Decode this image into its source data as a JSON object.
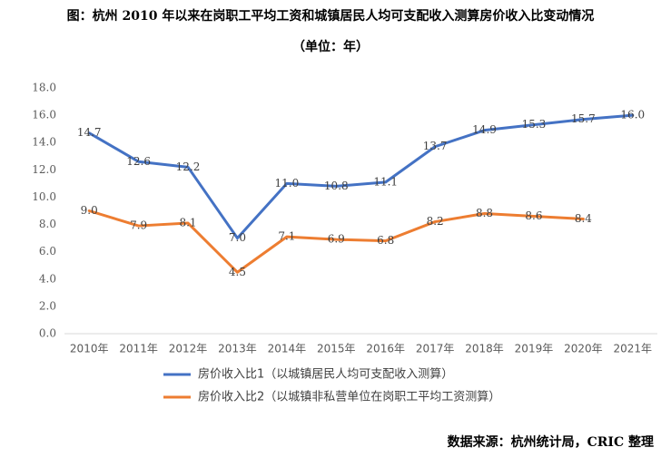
{
  "chart_data": {
    "type": "line",
    "title": "图：杭州 2010 年以来在岗职工平均工资和城镇居民人均可支配收入测算房价收入比变动情况",
    "subtitle": "（单位：年）",
    "source": "数据来源：杭州统计局，CRIC 整理",
    "categories": [
      "2010年",
      "2011年",
      "2012年",
      "2013年",
      "2014年",
      "2015年",
      "2016年",
      "2017年",
      "2018年",
      "2019年",
      "2020年",
      "2021年"
    ],
    "series": [
      {
        "name": "房价收入比1（以城镇居民人均可支配收入测算）",
        "color": "#4472c4",
        "values": [
          14.7,
          12.6,
          12.2,
          7.0,
          11.0,
          10.8,
          11.1,
          13.7,
          14.9,
          15.3,
          15.7,
          16.0
        ],
        "value_labels": [
          "14.7",
          "12.6",
          "12.2",
          "7.0",
          "11.0",
          "10.8",
          "11.1",
          "13.7",
          "14.9",
          "15.3",
          "15.7",
          "16.0"
        ]
      },
      {
        "name": "房价收入比2（以城镇非私营单位在岗职工平均工资测算）",
        "color": "#ed7d31",
        "values": [
          9.0,
          7.9,
          8.1,
          4.5,
          7.1,
          6.9,
          6.8,
          8.2,
          8.8,
          8.6,
          8.4,
          null
        ],
        "value_labels": [
          "9.0",
          "7.9",
          "8.1",
          "4.5",
          "7.1",
          "6.9",
          "6.8",
          "8.2",
          "8.8",
          "8.6",
          "8.4",
          null
        ]
      }
    ],
    "ylim": [
      0,
      18
    ],
    "yticks": [
      {
        "value": 0,
        "label": "0.0"
      },
      {
        "value": 2,
        "label": "2.0"
      },
      {
        "value": 4,
        "label": "4.0"
      },
      {
        "value": 6,
        "label": "6.0"
      },
      {
        "value": 8,
        "label": "8.0"
      },
      {
        "value": 10,
        "label": "10.0"
      },
      {
        "value": 12,
        "label": "12.0"
      },
      {
        "value": 14,
        "label": "14.0"
      },
      {
        "value": 16,
        "label": "16.0"
      },
      {
        "value": 18,
        "label": "18.0"
      }
    ],
    "grid": false,
    "legend": "bottom"
  }
}
